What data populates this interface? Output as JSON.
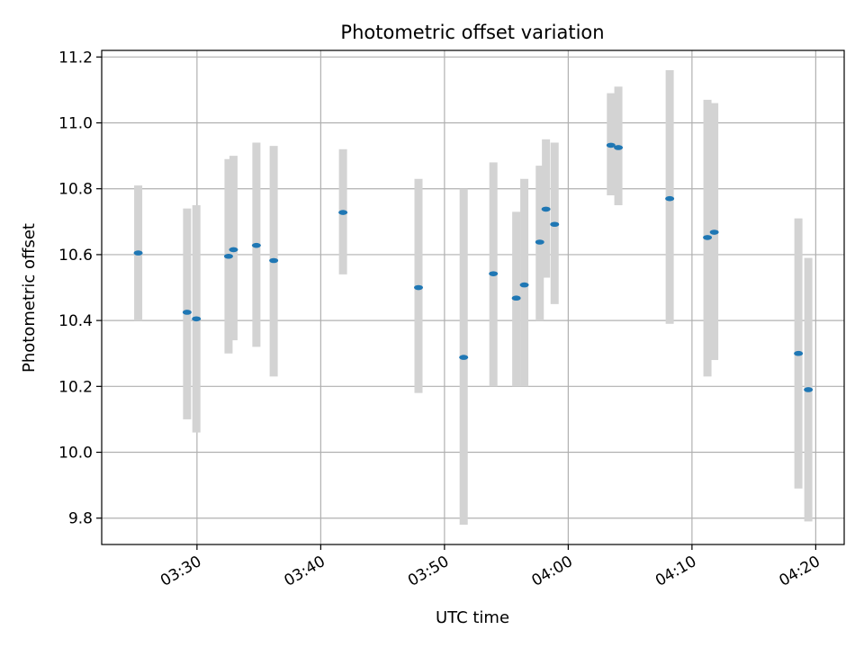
{
  "chart_data": {
    "type": "scatter",
    "title": "Photometric offset variation",
    "xlabel": "UTC time",
    "ylabel": "Photometric offset",
    "xlim_minutes": [
      202.3,
      262.3
    ],
    "ylim": [
      9.72,
      11.22
    ],
    "grid": true,
    "x_unit": "minutes since 00:00 UTC",
    "xticks": [
      {
        "value": 210,
        "label": "03:30"
      },
      {
        "value": 220,
        "label": "03:40"
      },
      {
        "value": 230,
        "label": "03:50"
      },
      {
        "value": 240,
        "label": "04:00"
      },
      {
        "value": 250,
        "label": "04:10"
      },
      {
        "value": 260,
        "label": "04:20"
      }
    ],
    "yticks": [
      {
        "value": 9.8,
        "label": "9.8"
      },
      {
        "value": 10.0,
        "label": "10.0"
      },
      {
        "value": 10.2,
        "label": "10.2"
      },
      {
        "value": 10.4,
        "label": "10.4"
      },
      {
        "value": 10.6,
        "label": "10.6"
      },
      {
        "value": 10.8,
        "label": "10.8"
      },
      {
        "value": 11.0,
        "label": "11.0"
      },
      {
        "value": 11.2,
        "label": "11.2"
      }
    ],
    "colors": {
      "point": "#1f77b4",
      "errorbar": "#d3d3d3",
      "grid": "#b0b0b0",
      "axis": "#000000"
    },
    "points": [
      {
        "x": 205.25,
        "y": 10.605,
        "low": 10.4,
        "high": 10.81
      },
      {
        "x": 209.2,
        "y": 10.425,
        "low": 10.1,
        "high": 10.74
      },
      {
        "x": 209.95,
        "y": 10.405,
        "low": 10.06,
        "high": 10.75
      },
      {
        "x": 212.55,
        "y": 10.595,
        "low": 10.3,
        "high": 10.89
      },
      {
        "x": 212.95,
        "y": 10.615,
        "low": 10.34,
        "high": 10.9
      },
      {
        "x": 214.8,
        "y": 10.628,
        "low": 10.32,
        "high": 10.94
      },
      {
        "x": 216.2,
        "y": 10.582,
        "low": 10.23,
        "high": 10.93
      },
      {
        "x": 221.8,
        "y": 10.728,
        "low": 10.54,
        "high": 10.92
      },
      {
        "x": 227.9,
        "y": 10.5,
        "low": 10.18,
        "high": 10.83
      },
      {
        "x": 231.55,
        "y": 10.288,
        "low": 9.78,
        "high": 10.8
      },
      {
        "x": 233.95,
        "y": 10.542,
        "low": 10.2,
        "high": 10.88
      },
      {
        "x": 235.8,
        "y": 10.468,
        "low": 10.2,
        "high": 10.73
      },
      {
        "x": 236.45,
        "y": 10.508,
        "low": 10.2,
        "high": 10.83
      },
      {
        "x": 237.7,
        "y": 10.638,
        "low": 10.4,
        "high": 10.87
      },
      {
        "x": 238.2,
        "y": 10.738,
        "low": 10.53,
        "high": 10.95
      },
      {
        "x": 238.9,
        "y": 10.692,
        "low": 10.45,
        "high": 10.94
      },
      {
        "x": 243.45,
        "y": 10.932,
        "low": 10.78,
        "high": 11.09
      },
      {
        "x": 244.05,
        "y": 10.925,
        "low": 10.75,
        "high": 11.11
      },
      {
        "x": 248.2,
        "y": 10.77,
        "low": 10.39,
        "high": 11.16
      },
      {
        "x": 251.25,
        "y": 10.652,
        "low": 10.23,
        "high": 11.07
      },
      {
        "x": 251.8,
        "y": 10.668,
        "low": 10.28,
        "high": 11.06
      },
      {
        "x": 258.6,
        "y": 10.3,
        "low": 9.89,
        "high": 10.71
      },
      {
        "x": 259.4,
        "y": 10.19,
        "low": 9.79,
        "high": 10.59
      }
    ]
  }
}
